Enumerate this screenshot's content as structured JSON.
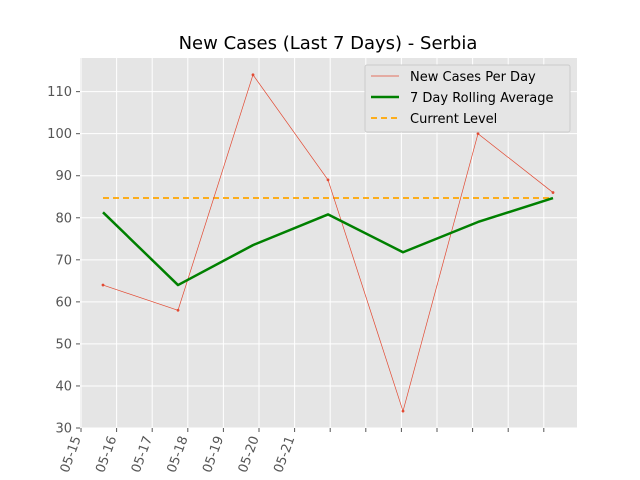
{
  "chart_data": {
    "type": "line",
    "title": "New Cases (Last 7 Days) - Serbia",
    "xlabel": "",
    "ylabel": "",
    "x_tick_labels": [
      "05-15",
      "05-16",
      "05-17",
      "05-18",
      "05-19",
      "05-20",
      "05-21"
    ],
    "ylim": [
      30,
      118
    ],
    "y_ticks": [
      30,
      40,
      50,
      60,
      70,
      80,
      90,
      100,
      110
    ],
    "grid": true,
    "legend_position": "top-right",
    "series": [
      {
        "name": "New Cases Per Day",
        "kind": "line",
        "color": "#e24a33",
        "x": [
          "2021-05-15",
          "2021-05-16",
          "2021-05-17",
          "2021-05-18",
          "2021-05-19",
          "2021-05-20",
          "2021-05-21"
        ],
        "values": [
          64,
          58,
          114,
          89,
          34,
          100,
          86
        ]
      },
      {
        "name": "7 Day Rolling Average",
        "kind": "line",
        "color": "#008000",
        "x": [
          "2021-05-15",
          "2021-05-16",
          "2021-05-17",
          "2021-05-18",
          "2021-05-19",
          "2021-05-20",
          "2021-05-21"
        ],
        "values": [
          81.3,
          64.0,
          73.5,
          80.8,
          71.8,
          79.0,
          84.7
        ]
      },
      {
        "name": "Current Level",
        "kind": "hline",
        "color": "#ffa500",
        "values": [
          84.7
        ]
      }
    ]
  }
}
